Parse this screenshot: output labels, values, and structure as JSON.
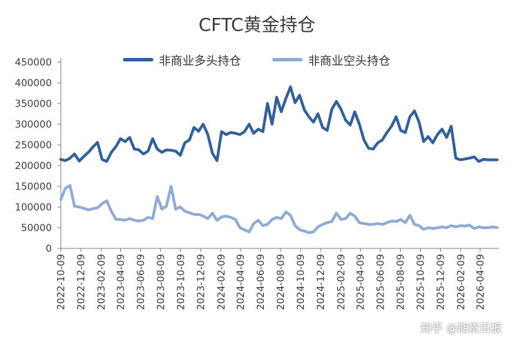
{
  "watermark": "知乎 @期货日报",
  "chart_data": {
    "type": "line",
    "title": "CFTC黄金持仓",
    "ylim": [
      0,
      450000
    ],
    "yticks": [
      "0",
      "50000",
      "100000",
      "150000",
      "200000",
      "250000",
      "300000",
      "350000",
      "400000",
      "450000"
    ],
    "ytick_values": [
      0,
      50000,
      100000,
      150000,
      200000,
      250000,
      300000,
      350000,
      400000,
      450000
    ],
    "grid": false,
    "legend": "top-center",
    "x_tick_labels": [
      "2022-10-09",
      "2022-12-09",
      "2023-02-09",
      "2023-04-09",
      "2023-06-09",
      "2023-08-09",
      "2023-10-09",
      "2023-12-09",
      "2024-02-09",
      "2024-04-09",
      "2024-06-09",
      "2024-08-09",
      "2024-10-09",
      "2024-12-09",
      "2025-02-09",
      "2025-04-09",
      "2025-06-09",
      "2025-08-09",
      "2025-10-09",
      "2025-12-09",
      "2026-02-09",
      "2026-04-09"
    ],
    "x_range": [
      "2022-10-09",
      "2026-06-05"
    ],
    "series": [
      {
        "name": "非商业多头持仓",
        "color": "#2e5f9e",
        "x": [
          "2022-10-09",
          "2022-10-23",
          "2022-11-06",
          "2022-11-20",
          "2022-12-04",
          "2022-12-18",
          "2023-01-01",
          "2023-01-15",
          "2023-01-29",
          "2023-02-12",
          "2023-02-26",
          "2023-03-12",
          "2023-03-26",
          "2023-04-09",
          "2023-04-23",
          "2023-05-07",
          "2023-05-21",
          "2023-06-04",
          "2023-06-18",
          "2023-07-02",
          "2023-07-16",
          "2023-07-30",
          "2023-08-13",
          "2023-08-27",
          "2023-09-10",
          "2023-09-24",
          "2023-10-08",
          "2023-10-22",
          "2023-11-05",
          "2023-11-19",
          "2023-12-03",
          "2023-12-17",
          "2023-12-31",
          "2024-01-14",
          "2024-01-28",
          "2024-02-11",
          "2024-02-25",
          "2024-03-10",
          "2024-03-24",
          "2024-04-07",
          "2024-04-21",
          "2024-05-05",
          "2024-05-19",
          "2024-06-02",
          "2024-06-16",
          "2024-06-30",
          "2024-07-14",
          "2024-07-28",
          "2024-08-11",
          "2024-08-25",
          "2024-09-08",
          "2024-09-22",
          "2024-10-06",
          "2024-10-20",
          "2024-11-03",
          "2024-11-17",
          "2024-12-01",
          "2024-12-15",
          "2024-12-29",
          "2025-01-12",
          "2025-01-26",
          "2025-02-09",
          "2025-02-23",
          "2025-03-09",
          "2025-03-23",
          "2025-04-06",
          "2025-04-20",
          "2025-05-04",
          "2025-05-18",
          "2025-06-01",
          "2025-06-15",
          "2025-06-29",
          "2025-07-13",
          "2025-07-27",
          "2025-08-10",
          "2025-08-24",
          "2025-09-07",
          "2025-09-21",
          "2025-10-05",
          "2025-10-19",
          "2025-11-02",
          "2025-11-16",
          "2025-11-30",
          "2025-12-14",
          "2025-12-28",
          "2026-01-11",
          "2026-01-25",
          "2026-02-08",
          "2026-02-22",
          "2026-03-08",
          "2026-03-22",
          "2026-04-05",
          "2026-04-19",
          "2026-05-03",
          "2026-05-17",
          "2026-05-31"
        ],
        "values": [
          215000,
          212000,
          218000,
          228000,
          211000,
          222000,
          232000,
          245000,
          256000,
          215000,
          210000,
          232000,
          246000,
          265000,
          258000,
          268000,
          240000,
          238000,
          228000,
          235000,
          265000,
          240000,
          232000,
          238000,
          237000,
          235000,
          225000,
          255000,
          262000,
          292000,
          283000,
          300000,
          275000,
          230000,
          212000,
          282000,
          275000,
          280000,
          278000,
          275000,
          282000,
          300000,
          278000,
          288000,
          282000,
          350000,
          300000,
          365000,
          330000,
          362000,
          390000,
          352000,
          370000,
          335000,
          318000,
          305000,
          325000,
          292000,
          285000,
          336000,
          355000,
          336000,
          310000,
          298000,
          330000,
          300000,
          262000,
          242000,
          240000,
          255000,
          262000,
          280000,
          295000,
          318000,
          285000,
          280000,
          318000,
          332000,
          305000,
          258000,
          270000,
          255000,
          275000,
          288000,
          268000,
          295000,
          218000,
          214000,
          216000,
          218000,
          221000,
          210000,
          215000,
          214000,
          214000,
          214000
        ]
      },
      {
        "name": "非商业空头持仓",
        "color": "#8eaad8",
        "x": [
          "2022-10-09",
          "2022-10-23",
          "2022-11-06",
          "2022-11-20",
          "2022-12-04",
          "2022-12-18",
          "2023-01-01",
          "2023-01-15",
          "2023-01-29",
          "2023-02-12",
          "2023-02-26",
          "2023-03-12",
          "2023-03-26",
          "2023-04-09",
          "2023-04-23",
          "2023-05-07",
          "2023-05-21",
          "2023-06-04",
          "2023-06-18",
          "2023-07-02",
          "2023-07-16",
          "2023-07-30",
          "2023-08-13",
          "2023-08-27",
          "2023-09-10",
          "2023-09-24",
          "2023-10-08",
          "2023-10-22",
          "2023-11-05",
          "2023-11-19",
          "2023-12-03",
          "2023-12-17",
          "2023-12-31",
          "2024-01-14",
          "2024-01-28",
          "2024-02-11",
          "2024-02-25",
          "2024-03-10",
          "2024-03-24",
          "2024-04-07",
          "2024-04-21",
          "2024-05-05",
          "2024-05-19",
          "2024-06-02",
          "2024-06-16",
          "2024-06-30",
          "2024-07-14",
          "2024-07-28",
          "2024-08-11",
          "2024-08-25",
          "2024-09-08",
          "2024-09-22",
          "2024-10-06",
          "2024-10-20",
          "2024-11-03",
          "2024-11-17",
          "2024-12-01",
          "2024-12-15",
          "2024-12-29",
          "2025-01-12",
          "2025-01-26",
          "2025-02-09",
          "2025-02-23",
          "2025-03-09",
          "2025-03-23",
          "2025-04-06",
          "2025-04-20",
          "2025-05-04",
          "2025-05-18",
          "2025-06-01",
          "2025-06-15",
          "2025-06-29",
          "2025-07-13",
          "2025-07-27",
          "2025-08-10",
          "2025-08-24",
          "2025-09-07",
          "2025-09-21",
          "2025-10-05",
          "2025-10-19",
          "2025-11-02",
          "2025-11-16",
          "2025-11-30",
          "2025-12-14",
          "2025-12-28",
          "2026-01-11",
          "2026-01-25",
          "2026-02-08",
          "2026-02-22",
          "2026-03-08",
          "2026-03-22",
          "2026-04-05",
          "2026-04-19",
          "2026-05-03",
          "2026-05-17",
          "2026-05-31"
        ],
        "values": [
          118000,
          145000,
          152000,
          102000,
          100000,
          97000,
          93000,
          96000,
          98000,
          108000,
          115000,
          90000,
          70000,
          70000,
          68000,
          72000,
          68000,
          66000,
          68000,
          75000,
          72000,
          125000,
          95000,
          102000,
          150000,
          95000,
          100000,
          90000,
          86000,
          82000,
          82000,
          78000,
          72000,
          85000,
          68000,
          76000,
          78000,
          75000,
          70000,
          50000,
          45000,
          40000,
          60000,
          68000,
          55000,
          58000,
          70000,
          75000,
          72000,
          88000,
          80000,
          55000,
          45000,
          42000,
          38000,
          40000,
          52000,
          58000,
          62000,
          65000,
          85000,
          70000,
          72000,
          85000,
          78000,
          62000,
          60000,
          58000,
          58000,
          60000,
          58000,
          62000,
          66000,
          65000,
          70000,
          62000,
          80000,
          58000,
          55000,
          46000,
          50000,
          48000,
          50000,
          52000,
          50000,
          55000,
          52000,
          55000,
          54000,
          56000,
          48000,
          52000,
          50000,
          50000,
          52000,
          50000
        ]
      }
    ]
  }
}
